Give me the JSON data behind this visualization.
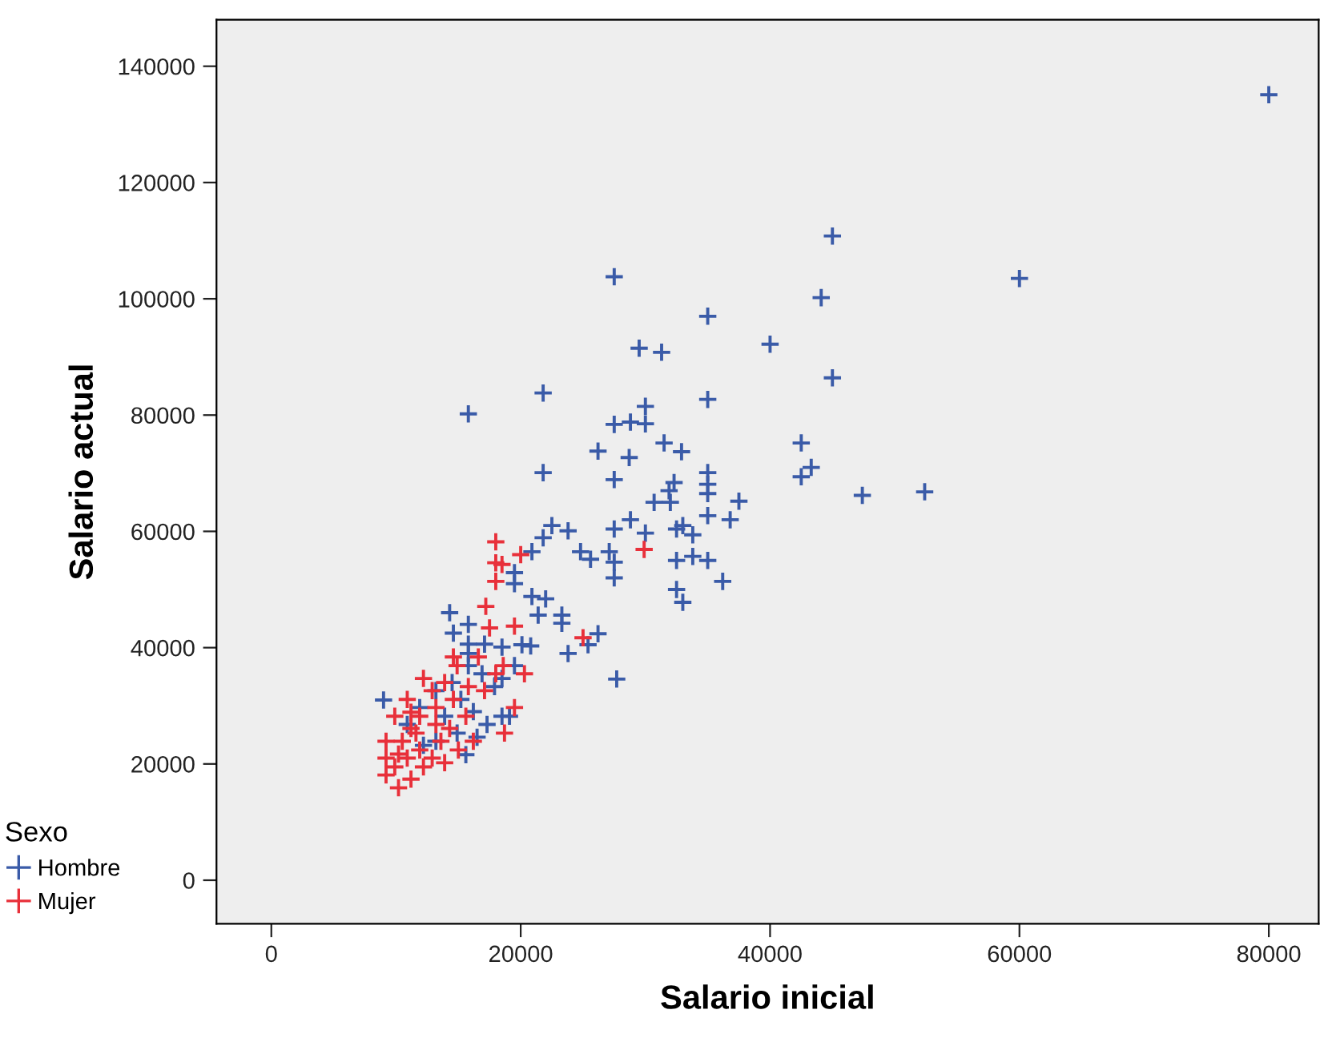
{
  "chart_data": {
    "type": "scatter",
    "xlabel": "Salario inicial",
    "ylabel": "Salario actual",
    "legend_title": "Sexo",
    "legend": "bottom left",
    "marker": "cross",
    "grid": false,
    "xlim": [
      -4400,
      84000
    ],
    "ylim": [
      -7500,
      148000
    ],
    "xticks": [
      0,
      20000,
      40000,
      60000,
      80000
    ],
    "yticks": [
      0,
      20000,
      40000,
      60000,
      80000,
      100000,
      120000,
      140000
    ],
    "series": [
      {
        "name": "Hombre",
        "color": "#3a5ba8",
        "x": [
          80000,
          45000,
          27500,
          60000,
          44100,
          35000,
          29500,
          31300,
          40000,
          45000,
          21800,
          35000,
          15800,
          30000,
          27500,
          28800,
          30000,
          26200,
          31500,
          32900,
          42500,
          28700,
          27500,
          21800,
          35000,
          43300,
          42500,
          32300,
          31900,
          35000,
          35000,
          47400,
          52400,
          30700,
          32000,
          37500,
          36800,
          35000,
          28800,
          27500,
          22500,
          23800,
          21800,
          30000,
          32500,
          33000,
          33800,
          20900,
          24800,
          25600,
          27100,
          27500,
          32500,
          33800,
          35000,
          27500,
          36200,
          32500,
          33000,
          19500,
          19500,
          20900,
          22000,
          21400,
          23300,
          23300,
          23800,
          26200,
          25400,
          27700,
          18500,
          20100,
          20800,
          14300,
          15800,
          14600,
          15800,
          17100,
          9000,
          15600,
          15800,
          16900,
          14500,
          17900,
          15200,
          16200,
          13900,
          18500,
          17300,
          14900,
          13200,
          12200,
          16500,
          19100,
          19500,
          18500,
          10900,
          11900,
          13200,
          15800
        ],
        "values": [
          135100,
          110800,
          103800,
          103500,
          100200,
          97000,
          91500,
          90800,
          92200,
          86400,
          83800,
          82700,
          80200,
          81500,
          78400,
          78800,
          78500,
          73800,
          75200,
          73700,
          75200,
          72700,
          68900,
          70100,
          70100,
          71000,
          69400,
          68400,
          67000,
          68100,
          66500,
          66200,
          66800,
          65000,
          65000,
          65200,
          62000,
          62700,
          62000,
          60400,
          61000,
          60100,
          58900,
          59700,
          60400,
          61000,
          59400,
          56500,
          56500,
          55200,
          56500,
          54700,
          55000,
          55700,
          55000,
          52000,
          51400,
          50000,
          47800,
          52900,
          51000,
          48800,
          48400,
          45600,
          45600,
          44200,
          39000,
          42400,
          40500,
          34600,
          40100,
          40500,
          40300,
          46000,
          44000,
          42500,
          40600,
          40600,
          31000,
          21600,
          36900,
          35500,
          34000,
          33300,
          31100,
          29000,
          28200,
          28200,
          26800,
          25300,
          23900,
          23200,
          24600,
          28200,
          36900,
          34700,
          26800,
          29700,
          32600,
          39000
        ]
      },
      {
        "name": "Mujer",
        "color": "#e8303a",
        "x": [
          18000,
          18500,
          18000,
          20000,
          18000,
          29900,
          17200,
          19500,
          25000,
          17500,
          16600,
          18600,
          20300,
          18000,
          18700,
          19500,
          17100,
          14600,
          12200,
          10900,
          9900,
          9200,
          9200,
          9200,
          10200,
          11200,
          9900,
          10900,
          11900,
          12900,
          13600,
          14300,
          15000,
          13200,
          11600,
          10500,
          11900,
          13200,
          14600,
          15600,
          16200,
          12900,
          13900,
          11200,
          10200,
          12200,
          13900,
          11200,
          15800,
          14900
        ],
        "values": [
          58200,
          54300,
          54600,
          56000,
          51400,
          56900,
          47100,
          43700,
          41700,
          43400,
          38400,
          36900,
          35500,
          35500,
          25300,
          29700,
          32600,
          38400,
          34700,
          31100,
          28200,
          23900,
          21000,
          18100,
          15900,
          17400,
          19500,
          21000,
          22400,
          21000,
          23900,
          26100,
          22400,
          26800,
          25300,
          23900,
          28200,
          29700,
          31100,
          28200,
          23900,
          32600,
          34000,
          28900,
          21700,
          19500,
          20200,
          26100,
          33300,
          36900
        ]
      }
    ]
  }
}
